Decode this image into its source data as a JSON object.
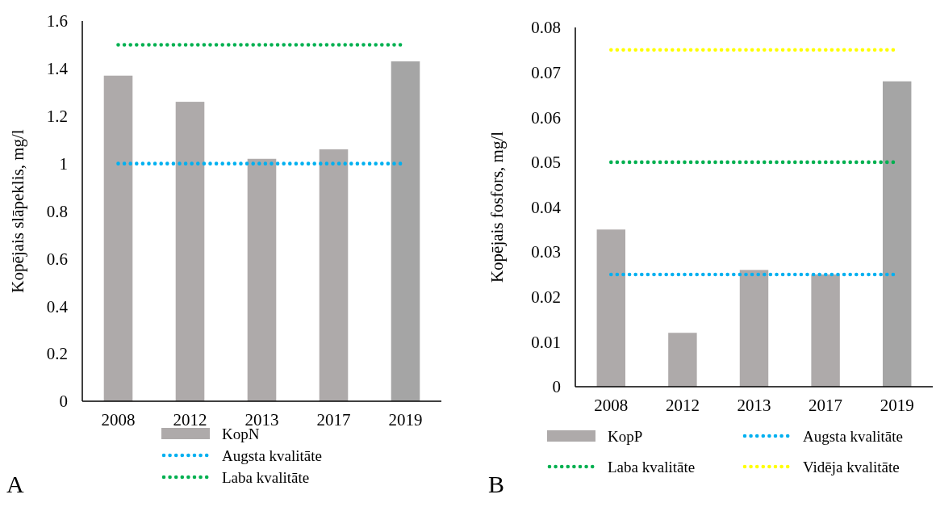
{
  "chart_data": [
    {
      "type": "bar",
      "categories": [
        "2008",
        "2012",
        "2013",
        "2017",
        "2019"
      ],
      "ylabel": "Kopējais slāpeklis, mg/l",
      "ylim": [
        0,
        1.6
      ],
      "yticks": [
        0,
        0.2,
        0.4,
        0.6,
        0.8,
        1,
        1.2,
        1.4,
        1.6
      ],
      "legend": "bottom",
      "annotations": [
        "A"
      ],
      "series": [
        {
          "name": "KopN",
          "colors": [
            "#aeaaaa",
            "#aeaaaa",
            "#aeaaaa",
            "#aeaaaa",
            "#a5a5a5"
          ],
          "values": [
            1.37,
            1.26,
            1.02,
            1.06,
            1.43
          ]
        },
        {
          "name": "Augsta kvalitāte",
          "type": "line",
          "line_style": "dotted",
          "color": "#00b0f0",
          "values": [
            1,
            1,
            1,
            1,
            1
          ]
        },
        {
          "name": "Laba kvalitāte",
          "type": "line",
          "line_style": "dotted",
          "color": "#00b050",
          "values": [
            1.5,
            1.5,
            1.5,
            1.5,
            1.5
          ]
        }
      ]
    },
    {
      "type": "bar",
      "categories": [
        "2008",
        "2012",
        "2013",
        "2017",
        "2019"
      ],
      "ylabel": "Kopējais fosfors, mg/l",
      "ylim": [
        0,
        0.08
      ],
      "yticks": [
        0,
        0.01,
        0.02,
        0.03,
        0.04,
        0.05,
        0.06,
        0.07,
        0.08
      ],
      "legend": "bottom",
      "annotations": [
        "B"
      ],
      "series": [
        {
          "name": "KopP",
          "colors": [
            "#aeaaaa",
            "#aeaaaa",
            "#aeaaaa",
            "#aeaaaa",
            "#a5a5a5"
          ],
          "values": [
            0.035,
            0.012,
            0.026,
            0.025,
            0.068
          ]
        },
        {
          "name": "Augsta kvalitāte",
          "type": "line",
          "line_style": "dotted",
          "color": "#00b0f0",
          "values": [
            0.025,
            0.025,
            0.025,
            0.025,
            0.025
          ]
        },
        {
          "name": "Laba kvalitāte",
          "type": "line",
          "line_style": "dotted",
          "color": "#00b050",
          "values": [
            0.05,
            0.05,
            0.05,
            0.05,
            0.05
          ]
        },
        {
          "name": "Vidēja kvalitāte",
          "type": "line",
          "line_style": "dotted",
          "color": "#ffff00",
          "values": [
            0.075,
            0.075,
            0.075,
            0.075,
            0.075
          ]
        }
      ]
    }
  ]
}
